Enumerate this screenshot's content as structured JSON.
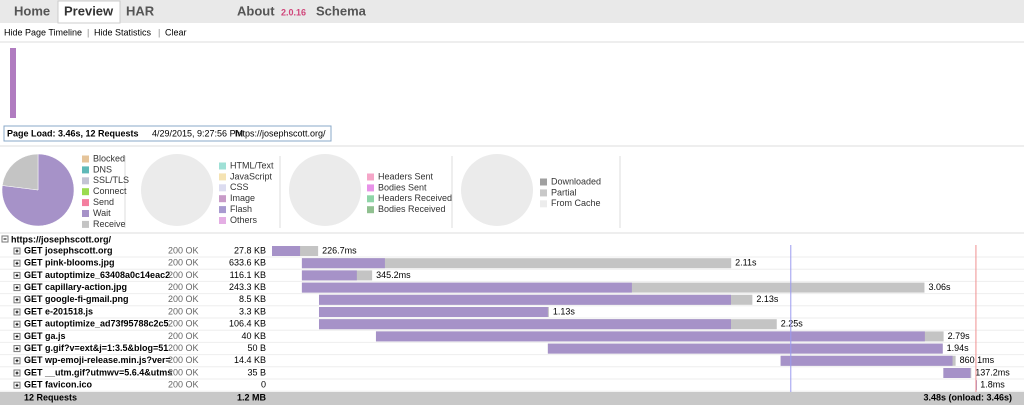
{
  "tabs": [
    "Home",
    "Preview",
    "HAR"
  ],
  "about": {
    "label": "About",
    "version": "2.0.16"
  },
  "schema": "Schema",
  "toolbar": [
    "Hide Page Timeline",
    "Hide Statistics",
    "Clear"
  ],
  "page_info": {
    "summary": "Page Load: 3.46s, 12 Requests",
    "date": "4/29/2015, 9:27:56 PM",
    "url": "https://josephscott.org/"
  },
  "pies": [
    {
      "legend": [
        {
          "name": "Blocked",
          "color": "#e5c49a",
          "value": 0
        },
        {
          "name": "DNS",
          "color": "#5fb9b8",
          "value": 0
        },
        {
          "name": "SSL/TLS",
          "color": "#c4c4d4",
          "value": 0
        },
        {
          "name": "Connect",
          "color": "#9bdb4f",
          "value": 0
        },
        {
          "name": "Send",
          "color": "#f47f9f",
          "value": 0
        },
        {
          "name": "Wait",
          "color": "#a692c8",
          "value": 77
        },
        {
          "name": "Receive",
          "color": "#c4c4c4",
          "value": 23
        }
      ]
    },
    {
      "legend": [
        {
          "name": "HTML/Text",
          "color": "#9fe0d6"
        },
        {
          "name": "JavaScript",
          "color": "#f5e3b3"
        },
        {
          "name": "CSS",
          "color": "#dcdcf0"
        },
        {
          "name": "Image",
          "color": "#c89bc8"
        },
        {
          "name": "Flash",
          "color": "#a89ad0"
        },
        {
          "name": "Others",
          "color": "#e4aee4"
        }
      ]
    },
    {
      "legend": [
        {
          "name": "Headers Sent",
          "color": "#f5a6c8"
        },
        {
          "name": "Bodies Sent",
          "color": "#e892e8"
        },
        {
          "name": "Headers Received",
          "color": "#8fd5a8"
        },
        {
          "name": "Bodies Received",
          "color": "#90c090"
        }
      ]
    },
    {
      "legend": [
        {
          "name": "Downloaded",
          "color": "#a0a0a0"
        },
        {
          "name": "Partial",
          "color": "#c8c8c8"
        },
        {
          "name": "From Cache",
          "color": "#ececec"
        }
      ]
    }
  ],
  "page": {
    "url": "https://josephscott.org/",
    "xlim": [
      0,
      3480
    ],
    "dom_loaded": 2550,
    "onload": 3460,
    "requests": [
      {
        "name": "GET josephscott.org",
        "status": "200 OK",
        "size": "27.8 KB",
        "start": 0,
        "wait": 138,
        "duration": 226.7,
        "duration_label": "226.7ms"
      },
      {
        "name": "GET pink-blooms.jpg",
        "status": "200 OK",
        "size": "633.6 KB",
        "start": 147,
        "wait": 408,
        "duration": 2110,
        "duration_label": "2.11s"
      },
      {
        "name": "GET autoptimize_63408a0c14eac2",
        "status": "200 OK",
        "size": "116.1 KB",
        "start": 147,
        "wait": 270,
        "duration": 345.2,
        "duration_label": "345.2ms"
      },
      {
        "name": "GET capillary-action.jpg",
        "status": "200 OK",
        "size": "243.3 KB",
        "start": 147,
        "wait": 1622,
        "duration": 3060,
        "duration_label": "3.06s"
      },
      {
        "name": "GET google-fi-gmail.png",
        "status": "200 OK",
        "size": "8.5 KB",
        "start": 231,
        "wait": 2025,
        "duration": 2130,
        "duration_label": "2.13s"
      },
      {
        "name": "GET e-201518.js",
        "status": "200 OK",
        "size": "3.3 KB",
        "start": 231,
        "wait": 1125,
        "duration": 1130,
        "duration_label": "1.13s"
      },
      {
        "name": "GET autoptimize_ad73f95788c2c5",
        "status": "200 OK",
        "size": "106.4 KB",
        "start": 231,
        "wait": 2025,
        "duration": 2250,
        "duration_label": "2.25s"
      },
      {
        "name": "GET ga.js",
        "status": "200 OK",
        "size": "40 KB",
        "start": 511,
        "wait": 2698,
        "duration": 2790,
        "duration_label": "2.79s"
      },
      {
        "name": "GET g.gif?v=ext&j=1:3.5&blog=51",
        "status": "200 OK",
        "size": "50 B",
        "start": 1356,
        "wait": 1941,
        "duration": 1940,
        "duration_label": "1.94s"
      },
      {
        "name": "GET wp-emoji-release.min.js?ver=",
        "status": "200 OK",
        "size": "14.4 KB",
        "start": 2500,
        "wait": 845,
        "duration": 860.1,
        "duration_label": "860.1ms"
      },
      {
        "name": "GET __utm.gif?utmwv=5.6.4&utms",
        "status": "200 OK",
        "size": "35 B",
        "start": 3300,
        "wait": 133,
        "duration": 137.2,
        "duration_label": "137.2ms"
      },
      {
        "name": "GET favicon.ico",
        "status": "200 OK",
        "size": "0",
        "start": 3460,
        "wait": 1.5,
        "duration": 1.8,
        "duration_label": "1.8ms"
      }
    ]
  },
  "footer": {
    "requests": "12 Requests",
    "size": "1.2 MB",
    "time": "3.48s (onload: 3.46s)"
  }
}
